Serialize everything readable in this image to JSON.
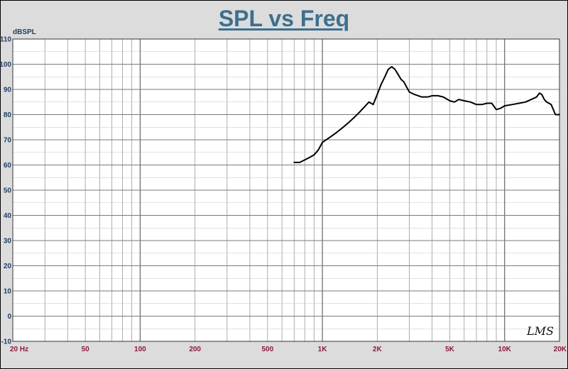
{
  "chart_data": {
    "type": "line",
    "title": "SPL vs Freq",
    "ylabel": "dBSPL",
    "xlabel": "",
    "xscale": "log",
    "xlim": [
      20,
      20000
    ],
    "ylim": [
      -10,
      110
    ],
    "yticks": [
      -10,
      0,
      10,
      20,
      30,
      40,
      50,
      60,
      70,
      80,
      90,
      100,
      110
    ],
    "xticks": [
      {
        "value": 20,
        "label": "20  Hz"
      },
      {
        "value": 50,
        "label": "50"
      },
      {
        "value": 100,
        "label": "100"
      },
      {
        "value": 200,
        "label": "200"
      },
      {
        "value": 500,
        "label": "500"
      },
      {
        "value": 1000,
        "label": "1K"
      },
      {
        "value": 2000,
        "label": "2K"
      },
      {
        "value": 5000,
        "label": "5K"
      },
      {
        "value": 10000,
        "label": "10K"
      },
      {
        "value": 20000,
        "label": "20K"
      }
    ],
    "grid": true,
    "series": [
      {
        "color": "#000000",
        "x": [
          700,
          750,
          800,
          850,
          900,
          950,
          1000,
          1100,
          1200,
          1300,
          1400,
          1500,
          1600,
          1700,
          1800,
          1900,
          2000,
          2100,
          2200,
          2300,
          2400,
          2500,
          2600,
          2700,
          2800,
          3000,
          3200,
          3500,
          3800,
          4000,
          4300,
          4600,
          5000,
          5300,
          5600,
          6000,
          6500,
          7000,
          7500,
          8000,
          8500,
          9000,
          9500,
          10000,
          11000,
          12000,
          13000,
          14000,
          15000,
          15500,
          16000,
          16500,
          17000,
          18000,
          19000,
          20000
        ],
        "y": [
          61,
          61,
          62,
          63,
          64,
          66,
          69,
          71,
          73,
          75,
          77,
          79,
          81,
          83,
          85,
          84,
          88,
          92,
          95,
          98,
          99,
          98,
          96,
          94,
          93,
          89,
          88,
          87,
          87,
          87.5,
          87.5,
          87,
          85.5,
          85,
          86,
          85.5,
          85,
          84,
          84,
          84.5,
          84.5,
          82,
          82.5,
          83.5,
          84,
          84.5,
          85,
          86,
          87,
          88.5,
          88,
          86,
          85,
          84,
          80,
          80
        ]
      }
    ],
    "annotation": "LMS"
  }
}
